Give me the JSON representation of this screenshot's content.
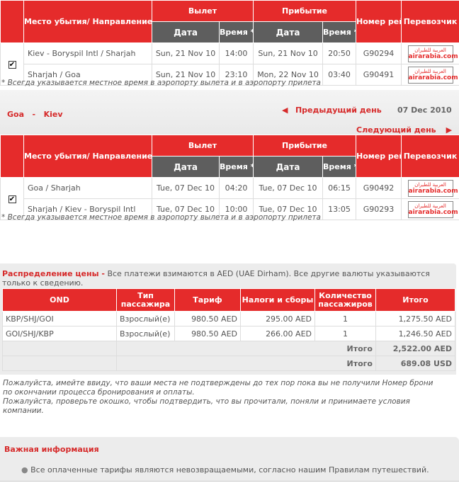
{
  "flight_headers": {
    "place": "Место убытия/ Направление",
    "departure": "Вылет",
    "arrival": "Прибытие",
    "date": "Дата",
    "time": "Время *",
    "flight_no": "Номер рейса",
    "carrier": "Перевозчик"
  },
  "carrier_logo": {
    "arabic": "العربية للطيران",
    "text": "airarabia.com"
  },
  "outbound": {
    "selected": true,
    "rows": [
      {
        "place": "Kiev - Boryspil Intl /  Sharjah",
        "dep_date": "Sun, 21 Nov 10",
        "dep_time": "14:00",
        "arr_date": "Sun, 21 Nov 10",
        "arr_time": "20:50",
        "flight": "G90294"
      },
      {
        "place": "Sharjah /  Goa",
        "dep_date": "Sun, 21 Nov 10",
        "dep_time": "23:10",
        "arr_date": "Mon, 22 Nov 10",
        "arr_time": "03:40",
        "flight": "G90491"
      }
    ]
  },
  "footnote": "* Всегда указывается местное время в аэропорту вылета и в аэропорту прилета",
  "return": {
    "from": "Goa",
    "sep": "-",
    "to": "Kiev",
    "prev_day": "Предыдущий день",
    "date": "07 Dec 2010",
    "next_day": "Следующий день",
    "selected": true,
    "rows": [
      {
        "place": "Goa /  Sharjah",
        "dep_date": "Tue, 07 Dec 10",
        "dep_time": "04:20",
        "arr_date": "Tue, 07 Dec 10",
        "arr_time": "06:15",
        "flight": "G90492"
      },
      {
        "place": "Sharjah /  Kiev - Boryspil Intl",
        "dep_date": "Tue, 07 Dec 10",
        "dep_time": "10:00",
        "arr_date": "Tue, 07 Dec 10",
        "arr_time": "13:05",
        "flight": "G90293"
      }
    ]
  },
  "price": {
    "title": "Распределение цены -",
    "desc": " Все платежи взимаются в AED (UAE Dirham). Все другие валюты указываются только к сведению.",
    "headers": [
      "OND",
      "Тип пассажира",
      "Тариф",
      "Налоги и сборы",
      "Количество пассажиров",
      "Итого"
    ],
    "rows": [
      [
        "KBP/SHJ/GOI",
        "Взрослый(е)",
        "980.50 AED",
        "295.00 AED",
        "1",
        "1,275.50 AED"
      ],
      [
        "GOI/SHJ/KBP",
        "Взрослый(е)",
        "980.50 AED",
        "266.00 AED",
        "1",
        "1,246.50 AED"
      ]
    ],
    "totals": [
      {
        "label": "Итого",
        "value": "2,522.00 AED"
      },
      {
        "label": "Итого",
        "value": "689.08 USD"
      }
    ]
  },
  "notes": [
    "Пожалуйста, имейте ввиду, что ваши места не подтверждены до тех пор пока вы не получили Номер брони по окончании процесса бронирования и оплаты.",
    "Пожалуйста, проверьте окошко, чтобы подтвердить, что вы прочитали, поняли и принимаете условия компании."
  ],
  "important": {
    "title": "Важная информация",
    "items": [
      "Все оплаченные тарифы являются невозвращаемыми, согласно нашим Правилам путешествий."
    ]
  }
}
